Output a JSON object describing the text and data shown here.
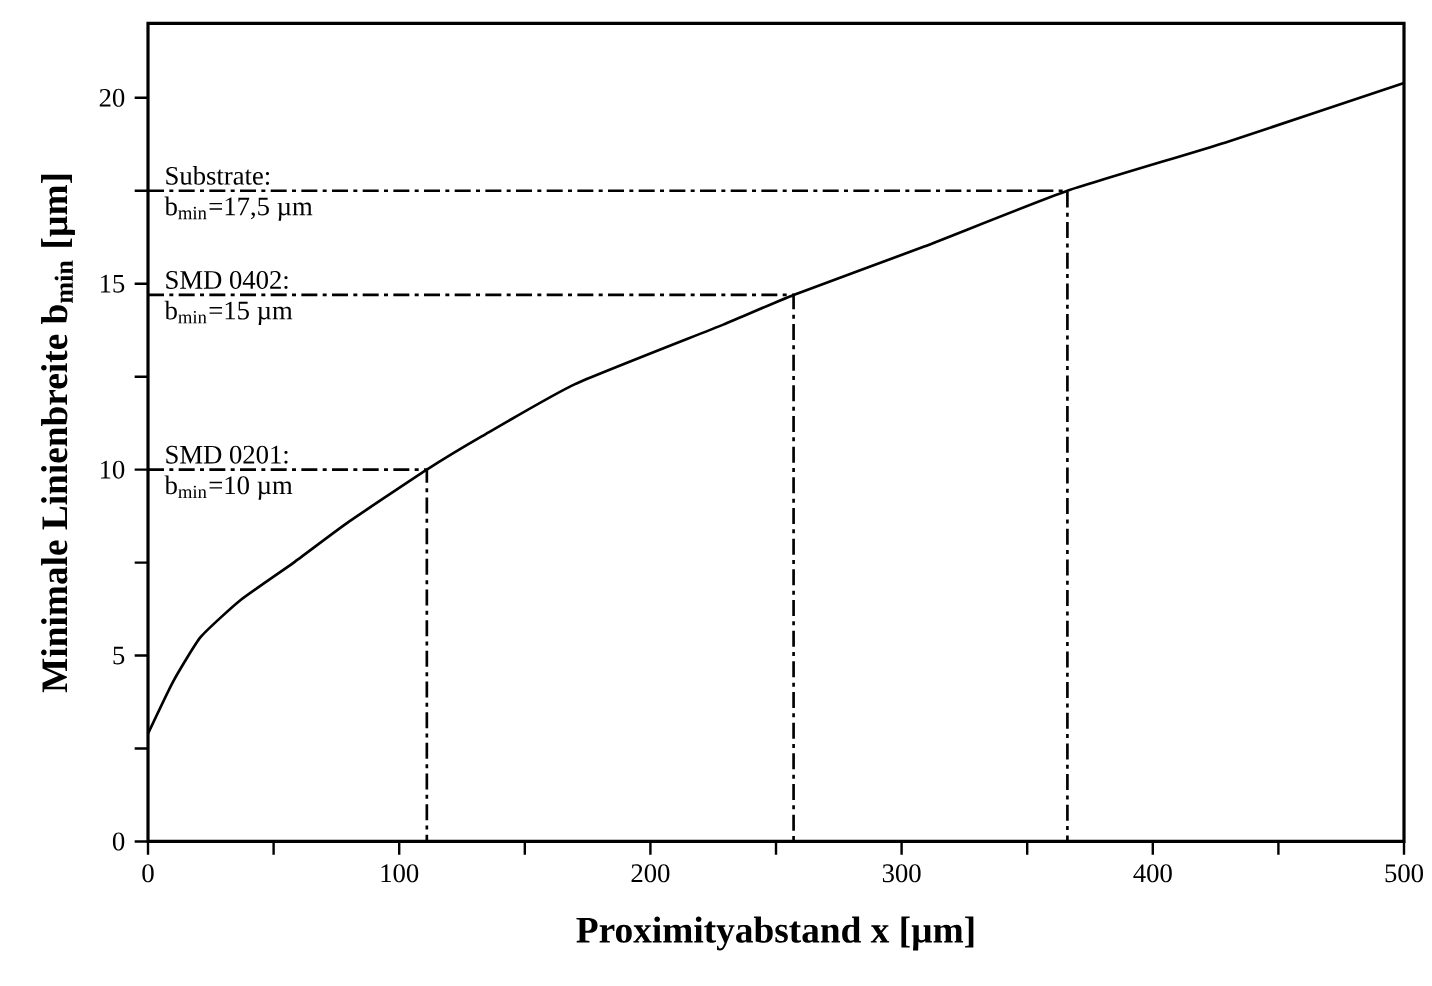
{
  "chart_data": {
    "type": "line",
    "xlabel": "Proximityabstand x [µm]",
    "ylabel": "Minimale Linienbreite b$_{min}$ [µm]",
    "xlim": [
      0,
      500
    ],
    "ylim": [
      0,
      22
    ],
    "xticks": [
      0,
      {
        "value": 50,
        "label": null
      },
      100,
      {
        "value": 150,
        "label": null
      },
      200,
      {
        "value": 250,
        "label": null
      },
      300,
      {
        "value": 350,
        "label": null
      },
      400,
      {
        "value": 450,
        "label": null
      },
      500
    ],
    "yticks": [
      0,
      {
        "value": 2.5,
        "label": null
      },
      5,
      {
        "value": 7.5,
        "label": null
      },
      10,
      {
        "value": 12.5,
        "label": null
      },
      15,
      {
        "value": 17.5,
        "label": null
      },
      20
    ],
    "series": [
      {
        "color": "#000000",
        "line_style": "solid",
        "x": [
          0,
          10,
          21,
          37,
          58,
          80,
          111,
          133,
          170,
          229,
          257,
          309,
          366,
          429,
          500
        ],
        "values": [
          2.9,
          4.3,
          5.5,
          6.5,
          7.5,
          8.6,
          10,
          10.9,
          12.3,
          13.9,
          14.7,
          16.0,
          17.5,
          18.8,
          20.4
        ]
      },
      {
        "color": "#000000",
        "line_style": "dashdot",
        "x": [
          0,
          111,
          111
        ],
        "values": [
          10,
          10,
          0
        ]
      },
      {
        "color": "#000000",
        "line_style": "dashdot",
        "x": [
          0,
          257,
          257
        ],
        "values": [
          14.7,
          14.7,
          0
        ]
      },
      {
        "color": "#000000",
        "line_style": "dashdot",
        "x": [
          0,
          366,
          366
        ],
        "values": [
          17.5,
          17.5,
          0
        ]
      }
    ],
    "annotations": [
      {
        "text": "SMD 0201:",
        "y": 10
      },
      {
        "text": "b$_{min}$=10 µm",
        "y": 10
      },
      {
        "text": "SMD 0402:",
        "y": 14.7
      },
      {
        "text": "b$_{min}$=15 µm",
        "y": 14.7
      },
      {
        "text": "Substrate:",
        "y": 17.5
      },
      {
        "text": "b$_{min}$=17,5 µm",
        "y": 17.5
      }
    ],
    "grid": false,
    "marker": "none"
  }
}
